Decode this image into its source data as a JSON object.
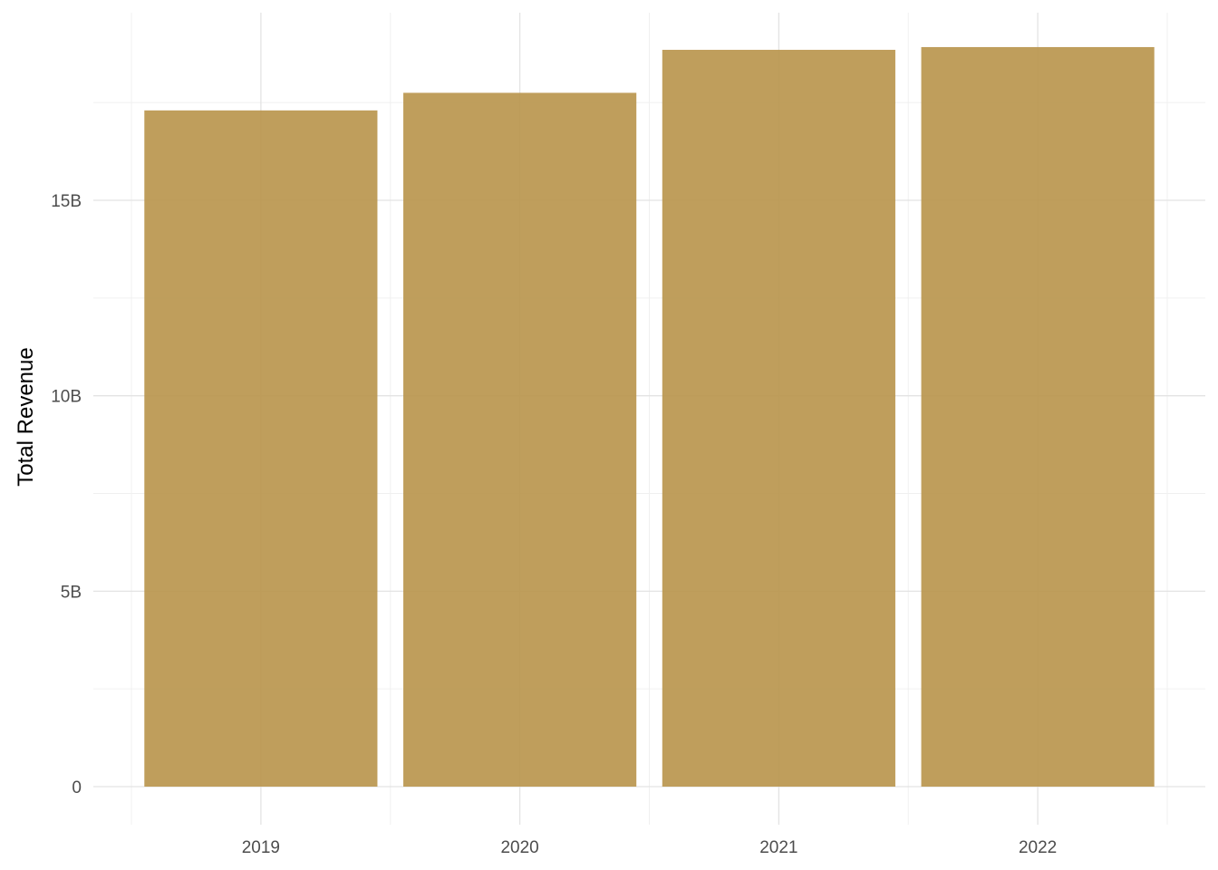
{
  "chart_data": {
    "type": "bar",
    "categories": [
      "2019",
      "2020",
      "2021",
      "2022"
    ],
    "values": [
      17.3,
      17.75,
      18.85,
      18.92
    ],
    "value_unit": "B",
    "title": "",
    "xlabel": "",
    "ylabel": "Total Revenue",
    "ylim": [
      0,
      19.8
    ],
    "yticks": [
      0,
      5,
      10,
      15
    ],
    "ytick_labels": [
      "0",
      "5B",
      "10B",
      "15B"
    ],
    "grid": true,
    "bar_color": "#b8934a"
  }
}
